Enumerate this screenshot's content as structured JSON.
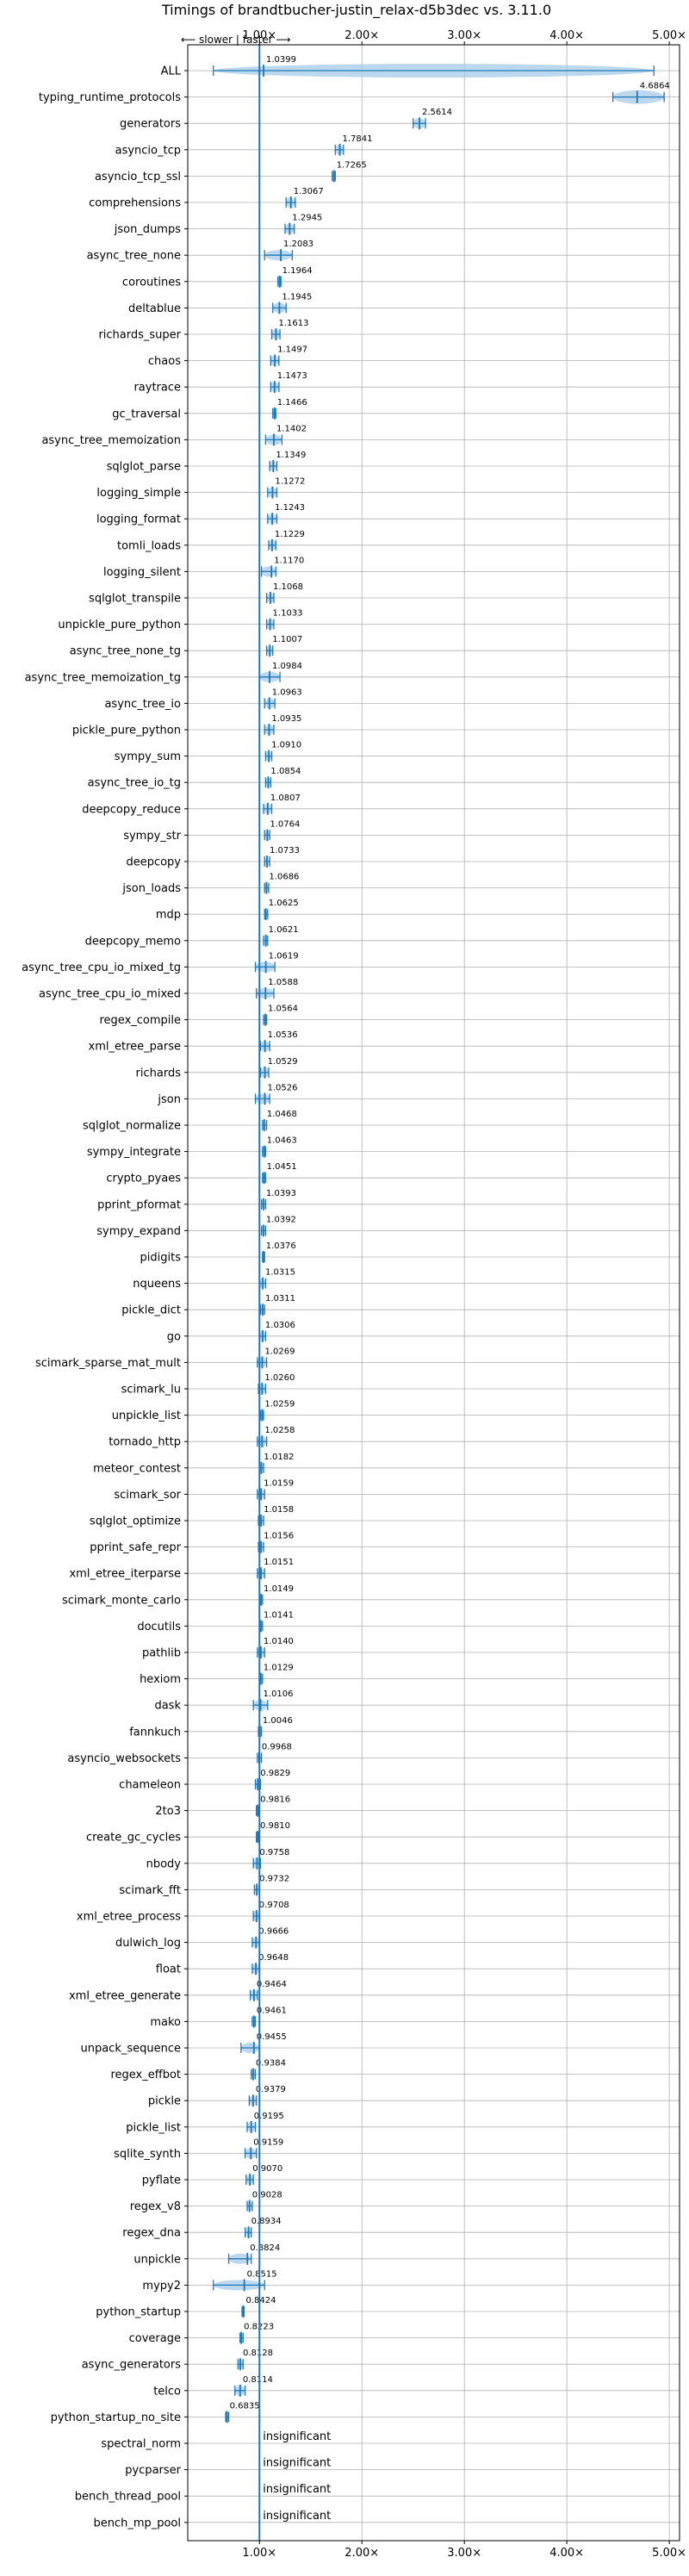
{
  "chart_data": {
    "type": "violin",
    "title": "Timings of brandtbucher-justin_relax-d5b3dec vs. 3.11.0",
    "direction_annotation": "⟵ slower | faster ⟶",
    "xlim": [
      0.3,
      5.1
    ],
    "x_ticks": [
      {
        "value": 1.0,
        "label": "1.00×"
      },
      {
        "value": 2.0,
        "label": "2.00×"
      },
      {
        "value": 3.0,
        "label": "3.00×"
      },
      {
        "value": 4.0,
        "label": "4.00×"
      },
      {
        "value": 5.0,
        "label": "5.00×"
      }
    ],
    "grid": true,
    "reference_line": 1.0,
    "accent_color": "#1f77b4",
    "violin_color": "#a6cbe8",
    "insignificant_text": "insignificant",
    "benchmarks": [
      {
        "name": "ALL",
        "value": 1.0399,
        "label": "1.0399",
        "range": [
          0.55,
          4.85
        ]
      },
      {
        "name": "typing_runtime_protocols",
        "value": 4.6864,
        "label": "4.6864",
        "range": [
          4.45,
          4.95
        ]
      },
      {
        "name": "generators",
        "value": 2.5614,
        "label": "2.5614",
        "range": [
          2.5,
          2.62
        ]
      },
      {
        "name": "asyncio_tcp",
        "value": 1.7841,
        "label": "1.7841",
        "range": [
          1.74,
          1.82
        ]
      },
      {
        "name": "asyncio_tcp_ssl",
        "value": 1.7265,
        "label": "1.7265",
        "range": [
          1.71,
          1.74
        ]
      },
      {
        "name": "comprehensions",
        "value": 1.3067,
        "label": "1.3067",
        "range": [
          1.26,
          1.35
        ]
      },
      {
        "name": "json_dumps",
        "value": 1.2945,
        "label": "1.2945",
        "range": [
          1.25,
          1.34
        ]
      },
      {
        "name": "async_tree_none",
        "value": 1.2083,
        "label": "1.2083",
        "range": [
          1.05,
          1.32
        ]
      },
      {
        "name": "coroutines",
        "value": 1.1964,
        "label": "1.1964",
        "range": [
          1.18,
          1.21
        ]
      },
      {
        "name": "deltablue",
        "value": 1.1945,
        "label": "1.1945",
        "range": [
          1.13,
          1.26
        ]
      },
      {
        "name": "richards_super",
        "value": 1.1613,
        "label": "1.1613",
        "range": [
          1.12,
          1.2
        ]
      },
      {
        "name": "chaos",
        "value": 1.1497,
        "label": "1.1497",
        "range": [
          1.11,
          1.19
        ]
      },
      {
        "name": "raytrace",
        "value": 1.1473,
        "label": "1.1473",
        "range": [
          1.11,
          1.19
        ]
      },
      {
        "name": "gc_traversal",
        "value": 1.1466,
        "label": "1.1466",
        "range": [
          1.13,
          1.16
        ]
      },
      {
        "name": "async_tree_memoization",
        "value": 1.1402,
        "label": "1.1402",
        "range": [
          1.06,
          1.22
        ]
      },
      {
        "name": "sqlglot_parse",
        "value": 1.1349,
        "label": "1.1349",
        "range": [
          1.1,
          1.17
        ]
      },
      {
        "name": "logging_simple",
        "value": 1.1272,
        "label": "1.1272",
        "range": [
          1.08,
          1.17
        ]
      },
      {
        "name": "logging_format",
        "value": 1.1243,
        "label": "1.1243",
        "range": [
          1.08,
          1.17
        ]
      },
      {
        "name": "tomli_loads",
        "value": 1.1229,
        "label": "1.1229",
        "range": [
          1.09,
          1.16
        ]
      },
      {
        "name": "logging_silent",
        "value": 1.117,
        "label": "1.1170",
        "range": [
          1.02,
          1.16
        ]
      },
      {
        "name": "sqlglot_transpile",
        "value": 1.1068,
        "label": "1.1068",
        "range": [
          1.07,
          1.14
        ]
      },
      {
        "name": "unpickle_pure_python",
        "value": 1.1033,
        "label": "1.1033",
        "range": [
          1.07,
          1.14
        ]
      },
      {
        "name": "async_tree_none_tg",
        "value": 1.1007,
        "label": "1.1007",
        "range": [
          1.07,
          1.13
        ]
      },
      {
        "name": "async_tree_memoization_tg",
        "value": 1.0984,
        "label": "1.0984",
        "range": [
          1.0,
          1.2
        ]
      },
      {
        "name": "async_tree_io",
        "value": 1.0963,
        "label": "1.0963",
        "range": [
          1.05,
          1.15
        ]
      },
      {
        "name": "pickle_pure_python",
        "value": 1.0935,
        "label": "1.0935",
        "range": [
          1.05,
          1.14
        ]
      },
      {
        "name": "sympy_sum",
        "value": 1.091,
        "label": "1.0910",
        "range": [
          1.06,
          1.12
        ]
      },
      {
        "name": "async_tree_io_tg",
        "value": 1.0854,
        "label": "1.0854",
        "range": [
          1.06,
          1.11
        ]
      },
      {
        "name": "deepcopy_reduce",
        "value": 1.0807,
        "label": "1.0807",
        "range": [
          1.04,
          1.12
        ]
      },
      {
        "name": "sympy_str",
        "value": 1.0764,
        "label": "1.0764",
        "range": [
          1.05,
          1.1
        ]
      },
      {
        "name": "deepcopy",
        "value": 1.0733,
        "label": "1.0733",
        "range": [
          1.05,
          1.1
        ]
      },
      {
        "name": "json_loads",
        "value": 1.0686,
        "label": "1.0686",
        "range": [
          1.05,
          1.09
        ]
      },
      {
        "name": "mdp",
        "value": 1.0625,
        "label": "1.0625",
        "range": [
          1.05,
          1.08
        ]
      },
      {
        "name": "deepcopy_memo",
        "value": 1.0621,
        "label": "1.0621",
        "range": [
          1.04,
          1.08
        ]
      },
      {
        "name": "async_tree_cpu_io_mixed_tg",
        "value": 1.0619,
        "label": "1.0619",
        "range": [
          0.96,
          1.15
        ]
      },
      {
        "name": "async_tree_cpu_io_mixed",
        "value": 1.0588,
        "label": "1.0588",
        "range": [
          0.97,
          1.14
        ]
      },
      {
        "name": "regex_compile",
        "value": 1.0564,
        "label": "1.0564",
        "range": [
          1.04,
          1.07
        ]
      },
      {
        "name": "xml_etree_parse",
        "value": 1.0536,
        "label": "1.0536",
        "range": [
          1.01,
          1.1
        ]
      },
      {
        "name": "richards",
        "value": 1.0529,
        "label": "1.0529",
        "range": [
          1.01,
          1.09
        ]
      },
      {
        "name": "json",
        "value": 1.0526,
        "label": "1.0526",
        "range": [
          0.96,
          1.1
        ]
      },
      {
        "name": "sqlglot_normalize",
        "value": 1.0468,
        "label": "1.0468",
        "range": [
          1.03,
          1.07
        ]
      },
      {
        "name": "sympy_integrate",
        "value": 1.0463,
        "label": "1.0463",
        "range": [
          1.03,
          1.06
        ]
      },
      {
        "name": "crypto_pyaes",
        "value": 1.0451,
        "label": "1.0451",
        "range": [
          1.03,
          1.06
        ]
      },
      {
        "name": "pprint_pformat",
        "value": 1.0393,
        "label": "1.0393",
        "range": [
          1.02,
          1.06
        ]
      },
      {
        "name": "sympy_expand",
        "value": 1.0392,
        "label": "1.0392",
        "range": [
          1.02,
          1.06
        ]
      },
      {
        "name": "pidigits",
        "value": 1.0376,
        "label": "1.0376",
        "range": [
          1.03,
          1.05
        ]
      },
      {
        "name": "nqueens",
        "value": 1.0315,
        "label": "1.0315",
        "range": [
          1.0,
          1.06
        ]
      },
      {
        "name": "pickle_dict",
        "value": 1.0311,
        "label": "1.0311",
        "range": [
          1.01,
          1.05
        ]
      },
      {
        "name": "go",
        "value": 1.0306,
        "label": "1.0306",
        "range": [
          1.0,
          1.06
        ]
      },
      {
        "name": "scimark_sparse_mat_mult",
        "value": 1.0269,
        "label": "1.0269",
        "range": [
          0.98,
          1.07
        ]
      },
      {
        "name": "scimark_lu",
        "value": 1.026,
        "label": "1.0260",
        "range": [
          0.99,
          1.06
        ]
      },
      {
        "name": "unpickle_list",
        "value": 1.0259,
        "label": "1.0259",
        "range": [
          1.01,
          1.04
        ]
      },
      {
        "name": "tornado_http",
        "value": 1.0258,
        "label": "1.0258",
        "range": [
          0.98,
          1.07
        ]
      },
      {
        "name": "meteor_contest",
        "value": 1.0182,
        "label": "1.0182",
        "range": [
          1.0,
          1.04
        ]
      },
      {
        "name": "scimark_sor",
        "value": 1.0159,
        "label": "1.0159",
        "range": [
          0.98,
          1.05
        ]
      },
      {
        "name": "sqlglot_optimize",
        "value": 1.0158,
        "label": "1.0158",
        "range": [
          0.99,
          1.04
        ]
      },
      {
        "name": "pprint_safe_repr",
        "value": 1.0156,
        "label": "1.0156",
        "range": [
          0.99,
          1.04
        ]
      },
      {
        "name": "xml_etree_iterparse",
        "value": 1.0151,
        "label": "1.0151",
        "range": [
          0.98,
          1.05
        ]
      },
      {
        "name": "scimark_monte_carlo",
        "value": 1.0149,
        "label": "1.0149",
        "range": [
          1.0,
          1.03
        ]
      },
      {
        "name": "docutils",
        "value": 1.0141,
        "label": "1.0141",
        "range": [
          1.0,
          1.03
        ]
      },
      {
        "name": "pathlib",
        "value": 1.014,
        "label": "1.0140",
        "range": [
          0.98,
          1.05
        ]
      },
      {
        "name": "hexiom",
        "value": 1.0129,
        "label": "1.0129",
        "range": [
          1.0,
          1.03
        ]
      },
      {
        "name": "dask",
        "value": 1.0106,
        "label": "1.0106",
        "range": [
          0.94,
          1.08
        ]
      },
      {
        "name": "fannkuch",
        "value": 1.0046,
        "label": "1.0046",
        "range": [
          0.99,
          1.02
        ]
      },
      {
        "name": "asyncio_websockets",
        "value": 0.9968,
        "label": "0.9968",
        "range": [
          0.98,
          1.02
        ]
      },
      {
        "name": "chameleon",
        "value": 0.9829,
        "label": "0.9829",
        "range": [
          0.96,
          1.01
        ]
      },
      {
        "name": "2to3",
        "value": 0.9816,
        "label": "0.9816",
        "range": [
          0.97,
          0.99
        ]
      },
      {
        "name": "create_gc_cycles",
        "value": 0.981,
        "label": "0.9810",
        "range": [
          0.97,
          0.99
        ]
      },
      {
        "name": "nbody",
        "value": 0.9758,
        "label": "0.9758",
        "range": [
          0.94,
          1.01
        ]
      },
      {
        "name": "scimark_fft",
        "value": 0.9732,
        "label": "0.9732",
        "range": [
          0.95,
          1.0
        ]
      },
      {
        "name": "xml_etree_process",
        "value": 0.9708,
        "label": "0.9708",
        "range": [
          0.94,
          1.0
        ]
      },
      {
        "name": "dulwich_log",
        "value": 0.9666,
        "label": "0.9666",
        "range": [
          0.93,
          1.0
        ]
      },
      {
        "name": "float",
        "value": 0.9648,
        "label": "0.9648",
        "range": [
          0.93,
          1.0
        ]
      },
      {
        "name": "xml_etree_generate",
        "value": 0.9464,
        "label": "0.9464",
        "range": [
          0.91,
          0.98
        ]
      },
      {
        "name": "mako",
        "value": 0.9461,
        "label": "0.9461",
        "range": [
          0.93,
          0.96
        ]
      },
      {
        "name": "unpack_sequence",
        "value": 0.9455,
        "label": "0.9455",
        "range": [
          0.82,
          1.0
        ]
      },
      {
        "name": "regex_effbot",
        "value": 0.9384,
        "label": "0.9384",
        "range": [
          0.92,
          0.96
        ]
      },
      {
        "name": "pickle",
        "value": 0.9379,
        "label": "0.9379",
        "range": [
          0.9,
          0.97
        ]
      },
      {
        "name": "pickle_list",
        "value": 0.9195,
        "label": "0.9195",
        "range": [
          0.88,
          0.96
        ]
      },
      {
        "name": "sqlite_synth",
        "value": 0.9159,
        "label": "0.9159",
        "range": [
          0.86,
          0.97
        ]
      },
      {
        "name": "pyflate",
        "value": 0.907,
        "label": "0.9070",
        "range": [
          0.87,
          0.94
        ]
      },
      {
        "name": "regex_v8",
        "value": 0.9028,
        "label": "0.9028",
        "range": [
          0.88,
          0.93
        ]
      },
      {
        "name": "regex_dna",
        "value": 0.8934,
        "label": "0.8934",
        "range": [
          0.86,
          0.92
        ]
      },
      {
        "name": "unpickle",
        "value": 0.8824,
        "label": "0.8824",
        "range": [
          0.7,
          0.92
        ]
      },
      {
        "name": "mypy2",
        "value": 0.8515,
        "label": "0.8515",
        "range": [
          0.55,
          1.05
        ]
      },
      {
        "name": "python_startup",
        "value": 0.8424,
        "label": "0.8424",
        "range": [
          0.83,
          0.85
        ]
      },
      {
        "name": "coverage",
        "value": 0.8223,
        "label": "0.8223",
        "range": [
          0.81,
          0.84
        ]
      },
      {
        "name": "async_generators",
        "value": 0.8128,
        "label": "0.8128",
        "range": [
          0.79,
          0.84
        ]
      },
      {
        "name": "telco",
        "value": 0.8114,
        "label": "0.8114",
        "range": [
          0.76,
          0.86
        ]
      },
      {
        "name": "python_startup_no_site",
        "value": 0.6835,
        "label": "0.6835",
        "range": [
          0.67,
          0.7
        ]
      },
      {
        "name": "spectral_norm",
        "value": null,
        "label": "insignificant",
        "range": null
      },
      {
        "name": "pycparser",
        "value": null,
        "label": "insignificant",
        "range": null
      },
      {
        "name": "bench_thread_pool",
        "value": null,
        "label": "insignificant",
        "range": null
      },
      {
        "name": "bench_mp_pool",
        "value": null,
        "label": "insignificant",
        "range": null
      }
    ]
  }
}
